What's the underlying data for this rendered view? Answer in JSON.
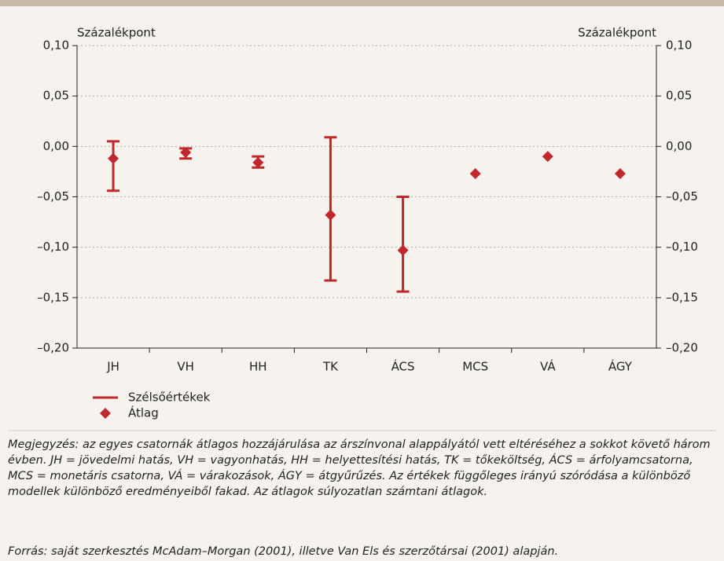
{
  "chart_data": {
    "type": "range_mean",
    "ylabel": "Százalékpont",
    "y2label": "Százalékpont",
    "categories": [
      "JH",
      "VH",
      "HH",
      "TK",
      "ÁCS",
      "MCS",
      "VÁ",
      "ÁGY"
    ],
    "series": [
      {
        "name": "Szélsőértékek",
        "color": "#c0282d",
        "low": [
          -0.044,
          -0.012,
          -0.021,
          -0.133,
          -0.144,
          null,
          null,
          null
        ],
        "high": [
          0.005,
          -0.002,
          -0.01,
          0.009,
          -0.05,
          null,
          null,
          null
        ]
      },
      {
        "name": "Átlag",
        "color": "#c0282d",
        "values": [
          -0.012,
          -0.006,
          -0.016,
          -0.068,
          -0.103,
          -0.027,
          -0.01,
          -0.027
        ]
      }
    ],
    "ylim": [
      -0.2,
      0.1
    ],
    "yticks": [
      {
        "value": 0.1,
        "label": "0,10"
      },
      {
        "value": 0.05,
        "label": "0,05"
      },
      {
        "value": 0,
        "label": "0,00"
      },
      {
        "value": -0.05,
        "label": "–0,05"
      },
      {
        "value": -0.1,
        "label": "–0,10"
      },
      {
        "value": -0.15,
        "label": "–0,15"
      },
      {
        "value": -0.2,
        "label": "–0,20"
      }
    ],
    "y2lim": [
      -0.2,
      0.1
    ],
    "y2ticks": [
      {
        "value": 0.1,
        "label": "0,10"
      },
      {
        "value": 0.05,
        "label": "0,05"
      },
      {
        "value": 0,
        "label": "0,00"
      },
      {
        "value": -0.05,
        "label": "–0,05"
      },
      {
        "value": -0.1,
        "label": "–0,10"
      },
      {
        "value": -0.15,
        "label": "–0,15"
      },
      {
        "value": -0.2,
        "label": "–0,20"
      }
    ],
    "grid": true
  },
  "note": "Megjegyzés: az egyes csatornák átlagos hozzájárulása az árszínvonal alappályától vett eltéréséhez a sokkot követő három évben. JH = jövedelmi hatás, VH = vagyonhatás, HH = helyettesítési hatás, TK = tőkeköltség, ÁCS = árfolyamcsatorna, MCS = monetáris csatorna, VÁ = várakozások, ÁGY = átgyűrűzés. Az értékek függőleges irányú szóródása a különböző modellek különböző eredményeiből fakad. Az átlagok súlyozatlan számtani átlagok.",
  "source": "Forrás: saját szerkesztés McAdam–Morgan (2001), illetve Van Els és szerzőtársai (2001) alapján."
}
